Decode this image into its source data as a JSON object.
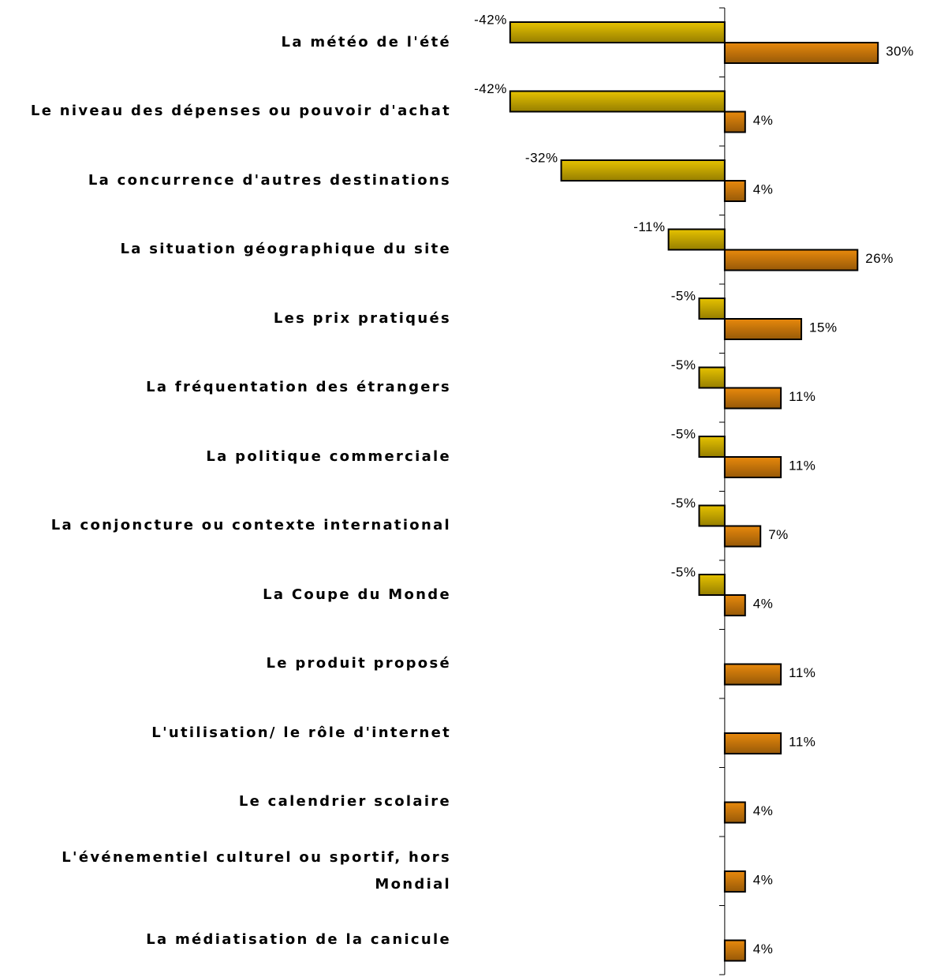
{
  "chart_data": {
    "type": "bar",
    "orientation": "horizontal",
    "categories": [
      "La météo de l'été",
      "Le niveau des dépenses ou pouvoir d'achat",
      "La concurrence d'autres destinations",
      "La situation géographique du site",
      "Les prix pratiqués",
      "La fréquentation des étrangers",
      "La politique commerciale",
      "La conjoncture ou contexte international",
      "La Coupe du Monde",
      "Le produit proposé",
      "L'utilisation/ le rôle d'internet",
      "Le calendrier scolaire",
      "L'événementiel culturel ou sportif, hors Mondial",
      "La médiatisation de la canicule"
    ],
    "series": [
      {
        "color": "#e6c200",
        "values": [
          -42,
          -42,
          -32,
          -11,
          -5,
          -5,
          -5,
          -5,
          -5,
          null,
          null,
          null,
          null,
          null
        ],
        "value_labels": [
          "-42%",
          "-42%",
          "-32%",
          "-11%",
          "-5%",
          "-5%",
          "-5%",
          "-5%",
          "-5%",
          null,
          null,
          null,
          null,
          null
        ]
      },
      {
        "color": "#e8890c",
        "values": [
          30,
          4,
          4,
          26,
          15,
          11,
          11,
          7,
          4,
          11,
          11,
          4,
          4,
          4
        ],
        "value_labels": [
          "30%",
          "4%",
          "4%",
          "26%",
          "15%",
          "11%",
          "11%",
          "7%",
          "4%",
          "11%",
          "11%",
          "4%",
          "4%",
          "4%"
        ]
      }
    ],
    "xlim": [
      -50,
      40
    ]
  }
}
